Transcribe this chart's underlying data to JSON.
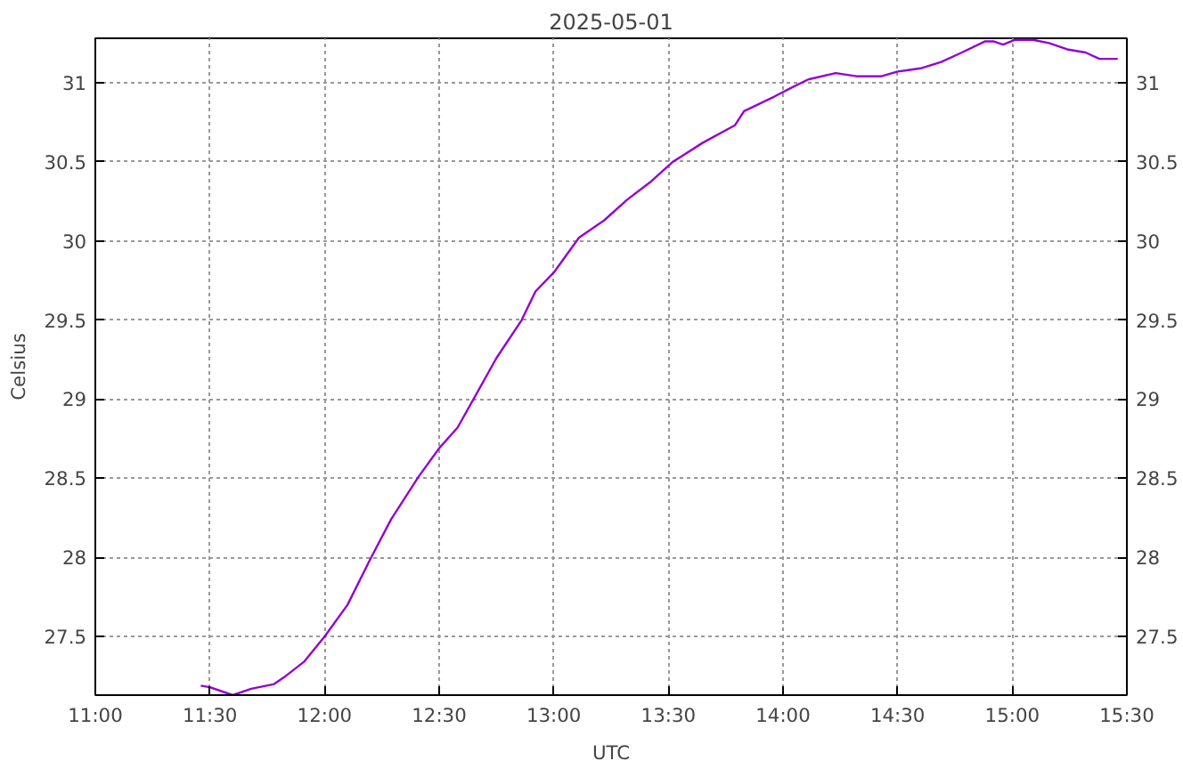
{
  "chart_data": {
    "type": "line",
    "title": "2025-05-01",
    "xlabel": "UTC",
    "ylabel": "Celsius",
    "x": [
      11.46,
      11.5,
      11.6,
      11.68,
      11.78,
      11.83,
      11.91,
      12.0,
      12.1,
      12.2,
      12.29,
      12.41,
      12.5,
      12.58,
      12.65,
      12.75,
      12.86,
      12.92,
      13.0,
      13.11,
      13.22,
      13.32,
      13.42,
      13.52,
      13.65,
      13.79,
      13.83,
      13.96,
      14.04,
      14.11,
      14.23,
      14.32,
      14.43,
      14.5,
      14.6,
      14.69,
      14.78,
      14.88,
      14.92,
      14.96,
      15.01,
      15.09,
      15.16,
      15.24,
      15.32,
      15.38,
      15.46
    ],
    "series": [
      {
        "color": "#9400d3",
        "values": [
          27.19,
          27.18,
          27.13,
          27.17,
          27.2,
          27.25,
          27.34,
          27.5,
          27.7,
          27.99,
          28.24,
          28.51,
          28.69,
          28.82,
          29.0,
          29.26,
          29.5,
          29.68,
          29.8,
          30.02,
          30.13,
          30.26,
          30.37,
          30.5,
          30.62,
          30.73,
          30.82,
          30.91,
          30.97,
          31.02,
          31.06,
          31.04,
          31.04,
          31.07,
          31.09,
          31.13,
          31.19,
          31.26,
          31.26,
          31.24,
          31.27,
          31.27,
          31.25,
          31.21,
          31.19,
          31.15,
          31.15
        ]
      }
    ],
    "xlim": [
      11,
      15.5
    ],
    "xticks": [
      {
        "value": 11,
        "label": "11:00"
      },
      {
        "value": 11.5,
        "label": "11:30"
      },
      {
        "value": 12,
        "label": "12:00"
      },
      {
        "value": 12.5,
        "label": "12:30"
      },
      {
        "value": 13,
        "label": "13:00"
      },
      {
        "value": 13.5,
        "label": "13:30"
      },
      {
        "value": 14,
        "label": "14:00"
      },
      {
        "value": 14.5,
        "label": "14:30"
      },
      {
        "value": 15,
        "label": "15:00"
      },
      {
        "value": 15.5,
        "label": "15:30"
      }
    ],
    "ylim": [
      27.13,
      31.28
    ],
    "yticks": [
      27.5,
      28,
      28.5,
      29,
      29.5,
      30,
      30.5,
      31
    ],
    "y2lim": [
      27.13,
      31.28
    ],
    "y2ticks": [
      27.5,
      28,
      28.5,
      29,
      29.5,
      30,
      30.5,
      31
    ],
    "grid": true,
    "marker": "none",
    "line_style": "solid"
  }
}
